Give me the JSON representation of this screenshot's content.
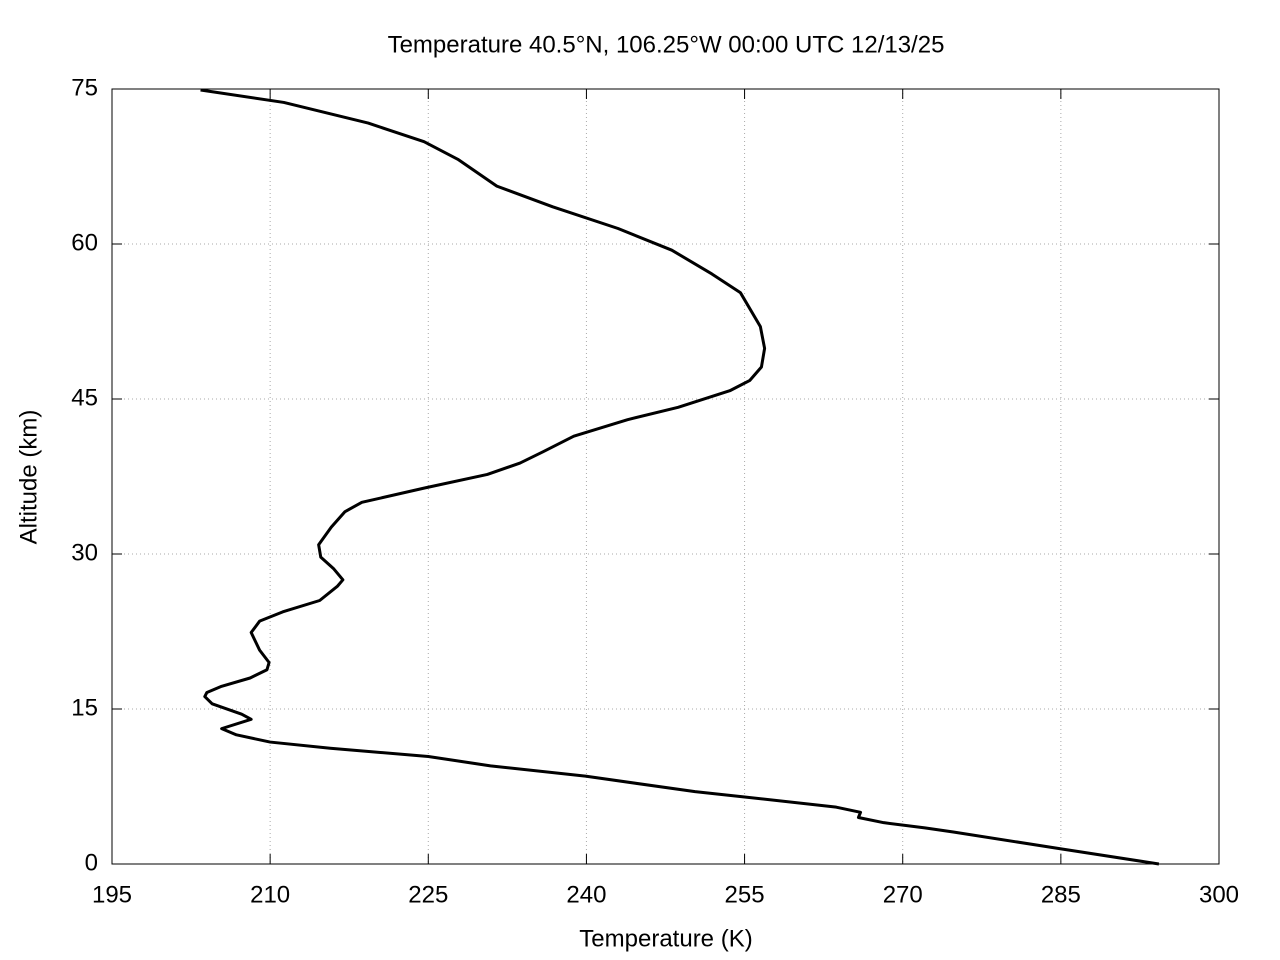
{
  "chart_data": {
    "type": "line",
    "title": "Temperature 40.5°N, 106.25°W 00:00 UTC 12/13/25",
    "xlabel": "Temperature (K)",
    "ylabel": "Altitude (km)",
    "x": [
      294.3,
      285.1,
      274.8,
      272.1,
      268.2,
      265.8,
      266.0,
      263.7,
      254.9,
      250.3,
      239.9,
      230.9,
      225.0,
      215.7,
      210.0,
      206.8,
      205.4,
      208.2,
      207.3,
      204.5,
      203.8,
      204.0,
      205.4,
      208.1,
      209.7,
      209.9,
      209.0,
      208.2,
      209.0,
      211.2,
      214.7,
      216.4,
      216.9,
      216.0,
      214.8,
      214.6,
      215.8,
      217.1,
      218.7,
      224.7,
      230.6,
      233.7,
      235.9,
      238.8,
      243.9,
      248.7,
      253.6,
      255.5,
      256.6,
      256.9,
      256.5,
      254.6,
      251.9,
      248.1,
      243.0,
      236.8,
      231.5,
      227.8,
      224.6,
      219.3,
      211.3,
      203.4
    ],
    "values": [
      0,
      1.45,
      3.1,
      3.5,
      4.0,
      4.5,
      5.0,
      5.5,
      6.5,
      7.0,
      8.5,
      9.5,
      10.4,
      11.2,
      11.8,
      12.5,
      13.1,
      14.0,
      14.5,
      15.5,
      16.2,
      16.6,
      17.2,
      18.0,
      18.8,
      19.5,
      20.7,
      22.4,
      23.5,
      24.4,
      25.5,
      26.9,
      27.5,
      28.6,
      29.7,
      30.9,
      32.6,
      34.1,
      35.0,
      36.4,
      37.7,
      38.8,
      39.9,
      41.4,
      43.0,
      44.2,
      45.8,
      46.8,
      48.1,
      49.9,
      52.0,
      55.3,
      57.1,
      59.4,
      61.5,
      63.6,
      65.6,
      68.2,
      69.9,
      71.7,
      73.7,
      74.9
    ],
    "color": "#000000",
    "xlim": [
      195,
      300
    ],
    "xticks": [
      195,
      210,
      225,
      240,
      255,
      270,
      285,
      300
    ],
    "ylim": [
      0,
      75
    ],
    "yticks": [
      0,
      15,
      30,
      45,
      60,
      75
    ],
    "grid": true
  }
}
